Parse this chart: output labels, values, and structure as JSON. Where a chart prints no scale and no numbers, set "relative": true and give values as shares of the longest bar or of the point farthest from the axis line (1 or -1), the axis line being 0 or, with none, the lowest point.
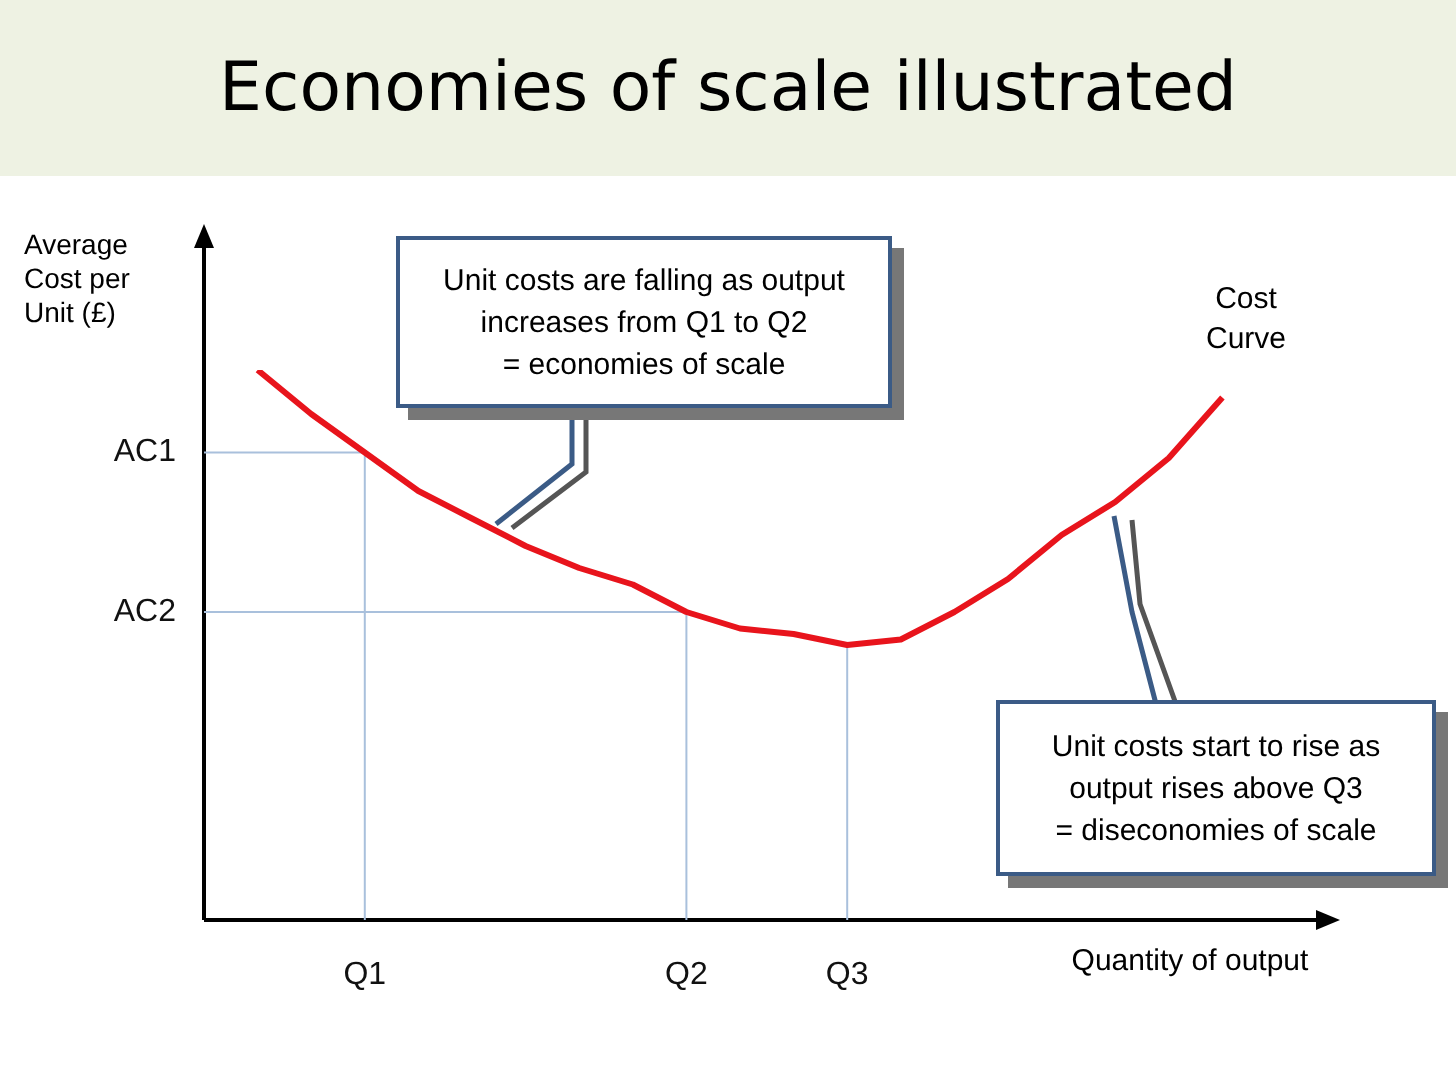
{
  "chart_data": {
    "type": "line",
    "title": "Economies of scale illustrated",
    "xlabel": "Quantity of output",
    "ylabel": "Average Cost per Unit (£)",
    "relative": true,
    "grid": false,
    "legend": false,
    "marker": "none",
    "line_style": "solid",
    "categories": [
      null,
      null,
      null,
      "Q1",
      null,
      null,
      null,
      null,
      null,
      "Q2",
      null,
      null,
      "Q3",
      null,
      null,
      null,
      null,
      null,
      null,
      null,
      null
    ],
    "series": [
      {
        "color": "#e8141c",
        "values": [
          null,
          1,
          0.92,
          0.85,
          0.78,
          0.73,
          0.68,
          0.64,
          0.61,
          0.56,
          0.53,
          0.52,
          0.5,
          0.51,
          0.56,
          0.62,
          0.7,
          0.76,
          0.84,
          0.95,
          null
        ]
      }
    ],
    "ref_lines": [
      {
        "axis": "x",
        "value": "Q1",
        "color": "#a9c0dc"
      },
      {
        "axis": "x",
        "value": "Q2",
        "color": "#a9c0dc"
      },
      {
        "axis": "x",
        "value": "Q3",
        "color": "#a9c0dc"
      },
      {
        "axis": "y",
        "value": 0.85,
        "label": "AC1",
        "color": "#a9c0dc"
      },
      {
        "axis": "y",
        "value": 0.56,
        "label": "AC2",
        "color": "#a9c0dc"
      }
    ],
    "annotations": [
      "Unit costs are falling as output\nincreases from Q1 to Q2\n= economies of scale",
      "Unit costs start to rise as\noutput rises above Q3\n= diseconomies of scale",
      "Cost\nCurve"
    ]
  }
}
